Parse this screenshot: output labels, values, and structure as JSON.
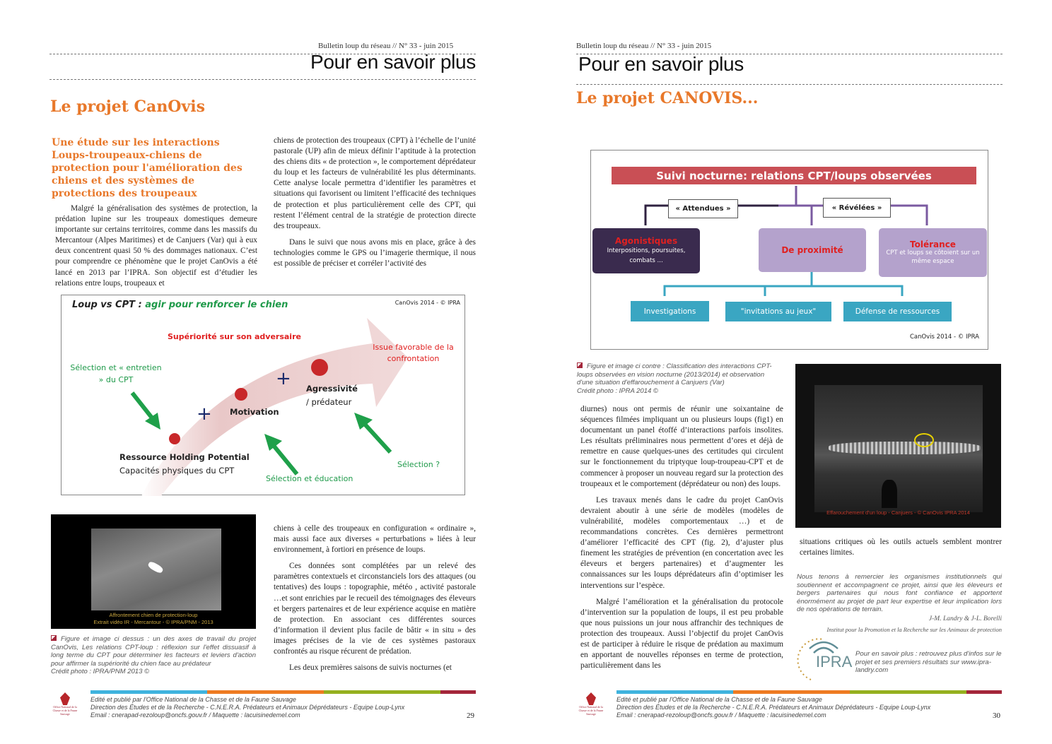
{
  "left_page": {
    "bulletin": "Bulletin loup du réseau // N° 33 - juin 2015",
    "heading": "Pour en savoir plus",
    "title": "Le projet CanOvis",
    "subtitle": "Une étude sur les interactions Loups-troupeaux-chiens de protection pour l'amélioration des chiens et des systèmes de protections des troupeaux",
    "col1_p1": "Malgré la généralisation des systèmes de protection, la prédation lupine sur les troupeaux domestiques demeure importante sur certains territoires, comme dans les massifs du Mercantour (Alpes Maritimes) et de Canjuers (Var) qui à eux deux concentrent quasi 50 % des dommages nationaux. C’est pour comprendre ce phénomène que le projet CanOvis a été lancé en 2013 par l’IPRA. Son objectif est d’étudier les relations entre loups, troupeaux et",
    "col2_p1": "chiens de protection des troupeaux (CPT) à l’échelle de l’unité pastorale (UP) afin de mieux définir l’aptitude à la protection des chiens dits « de protection », le comportement déprédateur du loup et les facteurs de vulnérabilité les plus déterminants. Cette analyse locale permettra d’identifier les paramètres et situations qui favorisent ou limitent l’efficacité des techniques de protection et plus particulièrement celle des CPT, qui restent l’élément central de la stratégie de protection directe des troupeaux.",
    "col2_p2": "Dans le suivi que nous avons mis en place, grâce à des technologies comme le GPS ou l’imagerie thermique, il nous est possible de préciser et corréler l’activité des",
    "figure": {
      "title_black": "Loup vs CPT :",
      "title_green": "agir pour renforcer le chien",
      "credit": "CanOvis 2014 - © IPRA",
      "superiorite": "Supériorité sur son adversaire",
      "issue": "Issue favorable de la confrontation",
      "selection_entretien": "Sélection et « entretien » du CPT",
      "rhp": "Ressource Holding Potential",
      "capacites": "Capacités physiques du CPT",
      "motivation": "Motivation",
      "agressivite": "Agressivité",
      "predateur": "/ prédateur",
      "plus": "+",
      "selection_education": "Sélection et éducation",
      "selection_q": "Sélection ?"
    },
    "photo_caption_1": "Affrontement chien de protection-loup",
    "photo_caption_2": "Extrait vidéo IR - Mercantour - © IPRA/PNM - 2013",
    "caption": "Figure  et image ci dessus : un des axes de travail du projet CanOvis, Les relations CPT-loup : réflexion sur l'effet dissuasif à long terme du CPT pour déterminer les facteurs et leviers d'action pour affirmer la supériorité du chien face au prédateur",
    "caption_credit": "Crédit photo : IPRA/PNM 2013 ©",
    "col2_p3": "chiens à celle des troupeaux en configuration « ordinaire », mais aussi face aux diverses « perturbations » liées à leur environnement, à fortiori en présence de loups.",
    "col2_p4": "Ces données sont complétées par un relevé des paramètres contextuels et circonstanciels lors des attaques (ou tentatives) des loups : topographie, météo , activité pastorale …et sont enrichies par le recueil des témoignages des éleveurs et bergers partenaires et de leur expérience acquise en matière de protection. En associant ces différentes sources d’information il devient plus facile de bâtir « in situ » des images précises de la vie de ces systèmes pastoraux confrontés au risque récurent de prédation.",
    "col2_p5": "Les deux premières saisons de suivis nocturnes (et",
    "page_number": "29"
  },
  "right_page": {
    "bulletin": "Bulletin loup du réseau // N° 33 - juin 2015",
    "heading": "Pour en savoir plus",
    "title": "Le projet CANOVIS...",
    "diagram": {
      "title": "Suivi nocturne: relations CPT/loups observées",
      "attendues": "« Attendues »",
      "revelees": "« Révélées »",
      "agonistiques": "Agonistiques",
      "agonistiques_desc": "Interpositions, poursuites, combats ...",
      "proximite": "De proximité",
      "tolerance": "Tolérance",
      "tolerance_desc": "CPT et loups se côtoient sur un même espace",
      "investigations": "Investigations",
      "invitations": "\"invitations au jeux\"",
      "defense": "Défense de ressources",
      "credit": "CanOvis 2014 - © IPRA"
    },
    "caption": "Figure  et image ci contre : Classification des interactions CPT-loups observées  en vision nocturne (2013/2014) et observation d'une situation d'effarouchement à Canjuers (Var)",
    "caption_credit": "Crédit photo : IPRA 2014 ©",
    "photo_caption": "Effarouchement d'un loup - Canjuers - © CanOvis IPRA 2014",
    "p1": "diurnes) nous ont permis de réunir une soixantaine de séquences filmées impliquant un ou plusieurs loups (fig1) en documentant un panel étoffé d’interactions parfois insolites. Les résultats préliminaires nous permettent d’ores et déjà de remettre en cause quelques-unes des certitudes qui circulent sur le fonctionnement du triptyque loup-troupeau-CPT et de commencer à proposer un nouveau regard sur la protection des troupeaux et le comportement (déprédateur ou non) des loups.",
    "p2": "Les travaux menés dans le cadre du projet CanOvis devraient aboutir à une série de modèles (modèles de vulnérabilité, modèles comportementaux …) et de recommandations concrètes. Ces dernières permettront d’améliorer l’efficacité des CPT (fig. 2), d’ajuster plus finement les stratégies de prévention (en concertation avec les éleveurs et bergers partenaires) et d’augmenter les connaissances sur les loups déprédateurs afin d’optimiser les interventions sur l’espèce.",
    "p3": "Malgré l’amélioration et la généralisation du protocole d’intervention sur la population de loups, il est peu probable que nous puissions un jour nous affranchir des techniques de protection des troupeaux. Aussi l’objectif du projet CanOvis est de participer à réduire le risque de prédation au maximum en apportant de nouvelles réponses en terme de protection, particulièrement dans les",
    "p4": "situations critiques où les outils actuels semblent montrer certaines limites.",
    "thanks": "Nous tenons à remercier les organismes institutionnels qui soutiennent et accompagnent ce projet, ainsi que les éleveurs et bergers partenaires qui nous font confiance et apportent énormément au projet de part leur expertise et leur implication lors de nos opérations de terrain.",
    "authors": "J-M. Landry & J-L. Borelli",
    "institute": "Institut pour la Promotion et la Recherche sur les Animaux de protection",
    "ipra_logo": "IPRA",
    "more_info": "Pour en savoir plus : retrouvez plus d'infos sur le projet et ses premiers résultats sur www.ipra-landry.com",
    "page_number": "30"
  },
  "footer": {
    "line1": "Edité et publié par l'Office National de la Chasse et de la Faune Sauvage",
    "line2": "Direction des Études et de la Recherche - C.N.E.R.A. Prédateurs et Animaux Déprédateurs - Equipe Loup-Lynx",
    "line3": "Email : cnerapad-rezoloup@oncfs.gouv.fr /  Maquette : lacuisinedemel.com",
    "logo_text": "Office National de la Chasse et de la Faune Sauvage",
    "bar_colors": [
      "#3fb3de",
      "#ee7b22",
      "#95b01f",
      "#a3263a"
    ]
  },
  "colors": {
    "orange": "#e8782a",
    "green": "#1f9a4a",
    "red": "#e02020",
    "dark_purple": "#3a2b4e",
    "lilac": "#b4a2cc",
    "teal": "#3aa6c2",
    "banner": "#c94f55"
  }
}
